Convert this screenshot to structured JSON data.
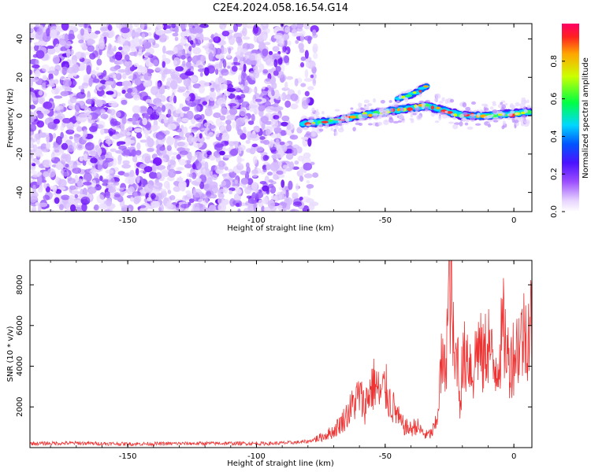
{
  "title": "C2E4.2024.058.16.54.G14",
  "colors": {
    "snr_line": "#ee3333",
    "axis": "#000000"
  },
  "chart_data": [
    {
      "type": "heatmap",
      "xlabel": "Height of straight line (km)",
      "ylabel": "Frequency (Hz)",
      "xlim": [
        -188,
        7
      ],
      "ylim": [
        -50,
        48
      ],
      "xticks": [
        -150,
        -100,
        -50,
        0
      ],
      "xtick_labels": [
        "-150",
        "-100",
        "-50",
        "0"
      ],
      "yticks": [
        -40,
        -20,
        0,
        20,
        40
      ],
      "ytick_labels": [
        "-40",
        "-20",
        "0",
        "20",
        "40"
      ],
      "noise_region_x": [
        -188,
        -77
      ],
      "signal_track": [
        {
          "x": -82,
          "y": -4
        },
        {
          "x": -70,
          "y": -3
        },
        {
          "x": -60,
          "y": 0
        },
        {
          "x": -50,
          "y": 2
        },
        {
          "x": -40,
          "y": 4
        },
        {
          "x": -34,
          "y": 5
        },
        {
          "x": -28,
          "y": 3
        },
        {
          "x": -20,
          "y": 0
        },
        {
          "x": -10,
          "y": 0
        },
        {
          "x": 0,
          "y": 1
        },
        {
          "x": 6,
          "y": 2
        }
      ],
      "secondary_branch": [
        {
          "x": -45,
          "y": 9
        },
        {
          "x": -40,
          "y": 11
        },
        {
          "x": -34,
          "y": 15
        }
      ],
      "colorbar": {
        "label": "Normalized spectral amplitude",
        "range": [
          0,
          1
        ],
        "ticks": [
          0.0,
          0.2,
          0.4,
          0.6,
          0.8
        ],
        "tick_labels": [
          "0.0",
          "0.2",
          "0.4",
          "0.6",
          "0.8"
        ]
      },
      "grid": false
    },
    {
      "type": "line",
      "xlabel": "Height of straight line (km)",
      "ylabel": "SNR (10 * v/v)",
      "xlim": [
        -188,
        7
      ],
      "ylim": [
        0,
        9200
      ],
      "xticks": [
        -150,
        -100,
        -50,
        0
      ],
      "xtick_labels": [
        "-150",
        "-100",
        "-50",
        "0"
      ],
      "yticks": [
        2000,
        4000,
        6000,
        8000
      ],
      "ytick_labels": [
        "2000",
        "4000",
        "6000",
        "8000"
      ],
      "series": [
        {
          "x": [
            -188,
            -170,
            -150,
            -130,
            -110,
            -95,
            -85,
            -80,
            -75,
            -70,
            -66,
            -62,
            -60,
            -58,
            -56,
            -54,
            -52,
            -50,
            -48,
            -46,
            -44,
            -42,
            -40,
            -38,
            -36,
            -34,
            -32,
            -30,
            -29,
            -28,
            -27,
            -26,
            -25,
            -24,
            -23,
            -22,
            -21,
            -20,
            -18,
            -16,
            -14,
            -12,
            -10,
            -8,
            -6,
            -4,
            -2,
            0,
            2,
            4,
            6,
            7
          ],
          "y": [
            200,
            220,
            180,
            200,
            210,
            200,
            250,
            300,
            500,
            800,
            1400,
            2200,
            2600,
            2000,
            2800,
            3200,
            2500,
            3000,
            2200,
            1800,
            1200,
            1000,
            900,
            1100,
            800,
            600,
            700,
            1200,
            2800,
            4200,
            3600,
            5500,
            8200,
            6800,
            3500,
            5200,
            2200,
            4000,
            4800,
            3600,
            5200,
            4200,
            5400,
            3800,
            4400,
            5800,
            4200,
            4600,
            5200,
            5600,
            6000,
            6200
          ]
        }
      ],
      "grid": false
    }
  ]
}
